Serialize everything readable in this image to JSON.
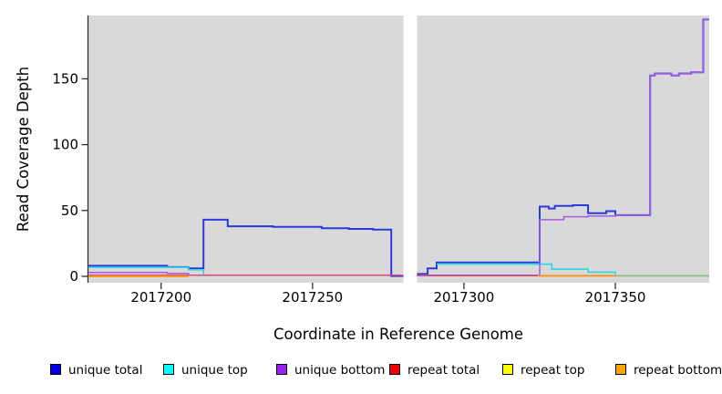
{
  "figure": {
    "background_color": "#ffffff",
    "panel_background_color": "#d9d9d9",
    "axis_color": "#000000"
  },
  "chart_data": {
    "type": "line",
    "subtype": "step-coverage",
    "title": "",
    "xlabel": "Coordinate in Reference Genome",
    "ylabel": "Read Coverage Depth",
    "grid": false,
    "legend_position": "bottom",
    "x_axis": {
      "min": 2017176,
      "max": 2017381,
      "ticks": [
        2017200,
        2017250,
        2017300,
        2017350
      ]
    },
    "y_axis": {
      "min": 0,
      "max": 198,
      "ticks": [
        0,
        50,
        100,
        150
      ]
    },
    "panels": [
      {
        "name": "left-region",
        "x_start": 2017176,
        "x_end": 2017280
      },
      {
        "name": "right-region",
        "x_start": 2017284.5,
        "x_end": 2017381
      }
    ],
    "series": [
      {
        "name": "unique total",
        "color": "#0000e0",
        "line_color": "#2b3bd9",
        "width": 2.0,
        "segments": [
          [
            [
              2017176,
              8
            ],
            [
              2017202,
              7
            ],
            [
              2017209,
              6
            ],
            [
              2017214,
              43
            ],
            [
              2017222,
              38
            ],
            [
              2017237,
              37.5
            ],
            [
              2017253,
              36.5
            ],
            [
              2017262,
              36
            ],
            [
              2017270,
              35.5
            ],
            [
              2017276,
              0.3
            ],
            [
              2017280,
              0.3
            ]
          ],
          [
            [
              2017284.5,
              1.8
            ],
            [
              2017288,
              6
            ],
            [
              2017291,
              10.5
            ],
            [
              2017325,
              53
            ],
            [
              2017328,
              51.5
            ],
            [
              2017330,
              53.5
            ],
            [
              2017336,
              54
            ],
            [
              2017341,
              48
            ],
            [
              2017347,
              49.5
            ],
            [
              2017350,
              46.5
            ],
            [
              2017361.5,
              152.5
            ],
            [
              2017363,
              154
            ],
            [
              2017368.5,
              152.5
            ],
            [
              2017371,
              154
            ],
            [
              2017375,
              155
            ],
            [
              2017379,
              195
            ],
            [
              2017381,
              195
            ]
          ]
        ]
      },
      {
        "name": "unique top",
        "color": "#00ffff",
        "line_color": "#2fd9ea",
        "width": 1.7,
        "segments": [
          [
            [
              2017176,
              6.8
            ],
            [
              2017209,
              5
            ],
            [
              2017214,
              0.3
            ]
          ],
          [
            [
              2017291,
              9.3
            ],
            [
              2017329,
              5.5
            ],
            [
              2017341,
              3.2
            ],
            [
              2017350,
              0.2
            ]
          ]
        ]
      },
      {
        "name": "unique bottom",
        "color": "#9820f0",
        "line_color": "#a35be3",
        "width": 1.5,
        "segments": [
          [
            [
              2017176,
              3
            ],
            [
              2017202,
              2.2
            ],
            [
              2017209,
              0.9
            ],
            [
              2017280,
              0.9
            ]
          ],
          [
            [
              2017284.5,
              0.9
            ],
            [
              2017325,
              43
            ],
            [
              2017333,
              45.3
            ],
            [
              2017341,
              45.8
            ],
            [
              2017350,
              46.5
            ],
            [
              2017361.5,
              152.5
            ],
            [
              2017363,
              154
            ],
            [
              2017368.5,
              152.5
            ],
            [
              2017371,
              154
            ],
            [
              2017375,
              155
            ],
            [
              2017379,
              195
            ],
            [
              2017381,
              195
            ]
          ]
        ]
      },
      {
        "name": "repeat total",
        "color": "#ee0000",
        "line_color": "#e04a66",
        "width": 1.3,
        "segments": [
          [
            [
              2017176,
              0.9
            ],
            [
              2017280,
              0.9
            ]
          ],
          [
            [
              2017284.5,
              0.4
            ],
            [
              2017381,
              0.4
            ]
          ]
        ]
      },
      {
        "name": "repeat top",
        "color": "#ffff00",
        "line_color": "#f0e040",
        "width": 1.3,
        "segments": [
          [
            [
              2017176,
              0.1
            ],
            [
              2017209,
              0.1
            ]
          ],
          [
            [
              2017324.5,
              0.5
            ],
            [
              2017350,
              0.5
            ]
          ]
        ]
      },
      {
        "name": "repeat bottom",
        "color": "#ffa500",
        "line_color": "#ff9420",
        "width": 2.0,
        "segments": [
          [
            [
              2017176,
              0
            ],
            [
              2017209,
              0
            ]
          ],
          [
            [
              2017324.5,
              0.4
            ],
            [
              2017350,
              0.4
            ]
          ]
        ]
      },
      {
        "name": "unlabeled green",
        "color": "#7fc87f",
        "line_color": "#7fc87f",
        "width": 1.5,
        "in_legend": false,
        "segments": [
          [
            [
              2017350,
              0.3
            ],
            [
              2017381,
              0.3
            ]
          ]
        ]
      }
    ],
    "legend": {
      "items": [
        {
          "label": "unique total",
          "color": "#0000e0"
        },
        {
          "label": "unique top",
          "color": "#00ffff"
        },
        {
          "label": "unique bottom",
          "color": "#9820f0"
        },
        {
          "label": "repeat total",
          "color": "#ee0000"
        },
        {
          "label": "repeat top",
          "color": "#ffff00"
        },
        {
          "label": "repeat bottom",
          "color": "#ffa500"
        }
      ]
    }
  }
}
